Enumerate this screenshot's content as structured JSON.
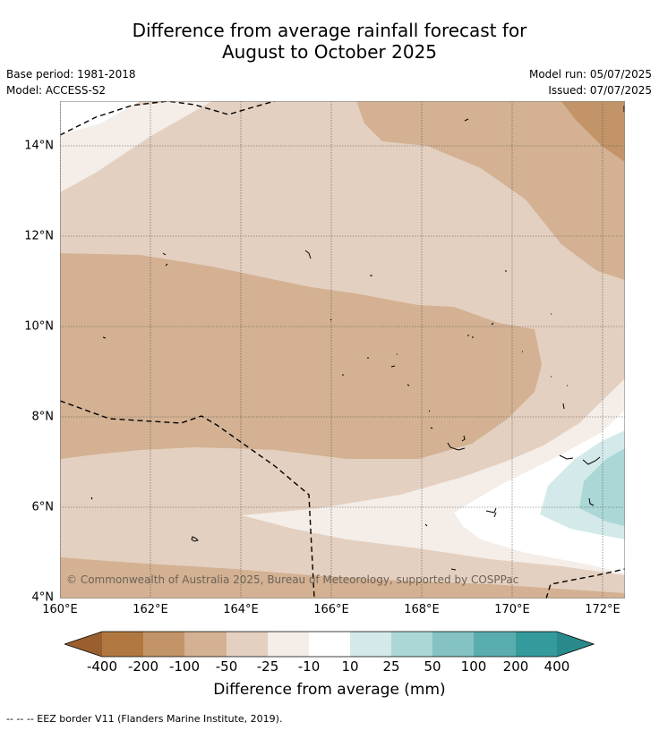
{
  "title": {
    "line1": "Difference from average rainfall forecast for",
    "line2": "August to October 2025"
  },
  "meta": {
    "base_period": "Base period: 1981-2018",
    "model": "Model: ACCESS-S2",
    "model_run": "Model run: 05/07/2025",
    "issued": "Issued: 07/07/2025"
  },
  "axes": {
    "lat_labels": [
      "14°N",
      "12°N",
      "10°N",
      "8°N",
      "6°N",
      "4°N"
    ],
    "lon_labels": [
      "160°E",
      "162°E",
      "164°E",
      "166°E",
      "168°E",
      "170°E",
      "172°E"
    ]
  },
  "copyright": "© Commonwealth of Australia 2025, Bureau of Meteorology, supported by COSPPac",
  "colorbar": {
    "ticks": [
      "-400",
      "-200",
      "-100",
      "-50",
      "-25",
      "-10",
      "10",
      "25",
      "50",
      "100",
      "200",
      "400"
    ],
    "colors": [
      "#9a5f2d",
      "#b07840",
      "#c29467",
      "#d3b192",
      "#e4d0c0",
      "#f4ede8",
      "#ffffff",
      "#d4eaea",
      "#abd7d7",
      "#84c2c3",
      "#5aadaf",
      "#359a9b",
      "#2a8a8b"
    ],
    "label": "Difference from average (mm)"
  },
  "footnote": "--  --  -- EEZ border V11 (Flanders Marine Institute, 2019)."
}
